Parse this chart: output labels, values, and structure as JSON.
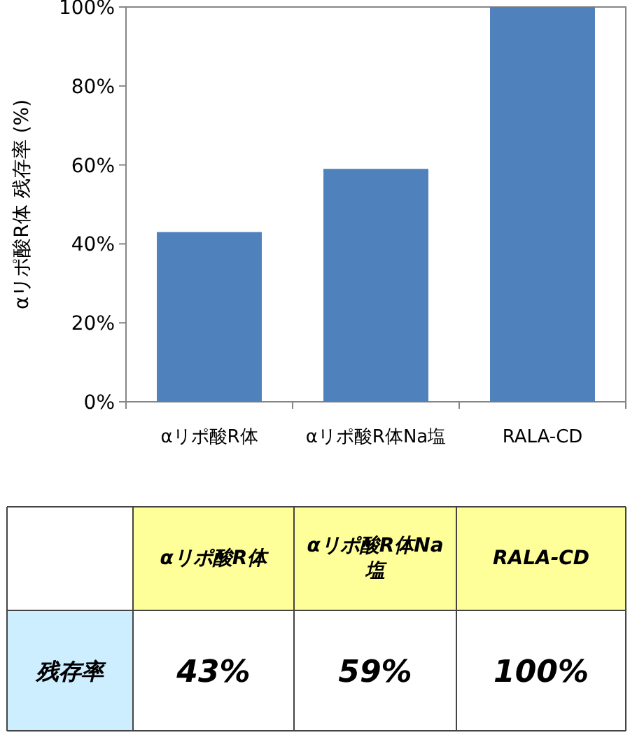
{
  "chart_data": {
    "type": "bar",
    "ylabel": "αリポ酸R体 残存率 (%)",
    "categories": [
      "αリポ酸R体",
      "αリポ酸R体Na塩",
      "RALA-CD"
    ],
    "values": [
      43,
      59,
      100
    ],
    "color": "#4f81bd",
    "value_labels": [
      "43%",
      "59%",
      "100%"
    ],
    "ylim": [
      0,
      100
    ],
    "yticks": [
      {
        "value": 0,
        "label": "0%"
      },
      {
        "value": 20,
        "label": "20%"
      },
      {
        "value": 40,
        "label": "40%"
      },
      {
        "value": 60,
        "label": "60%"
      },
      {
        "value": 80,
        "label": "80%"
      },
      {
        "value": 100,
        "label": "100%"
      }
    ],
    "grid": false,
    "annotations": [
      "残存率"
    ]
  }
}
